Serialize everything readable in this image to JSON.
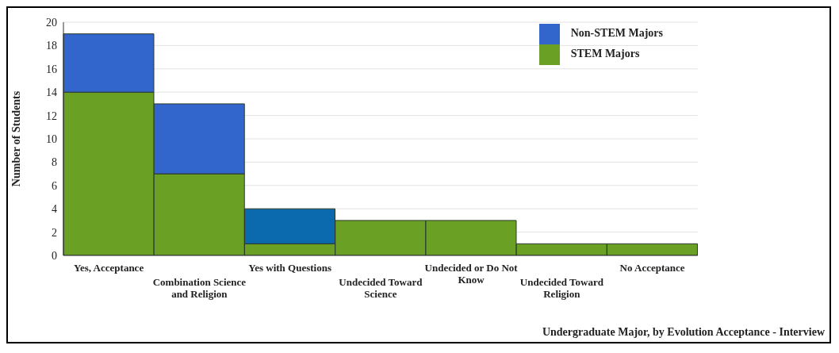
{
  "chart_data": {
    "type": "bar",
    "stacked": true,
    "xlabel": "Undergraduate Major, by Evolution Acceptance - Interview",
    "ylabel": "Number of Students",
    "categories": [
      "Yes, Acceptance",
      "Combination Science and Religion",
      "Yes with Questions",
      "Undecided Toward Science",
      "Undecided or Do Not Know",
      "Undecided Toward Religion",
      "No Acceptance"
    ],
    "series": [
      {
        "name": "STEM Majors",
        "color": "#6aa125",
        "values": [
          14,
          7,
          1,
          3,
          3,
          1,
          1
        ]
      },
      {
        "name": "Non-STEM Majors",
        "color": "#3366cc",
        "colors": [
          "#3366cc",
          "#3366cc",
          "#0b6aae",
          "#3366cc",
          "#3366cc",
          "#3366cc",
          "#3366cc"
        ],
        "values": [
          5,
          6,
          3,
          0,
          0,
          0,
          0
        ]
      }
    ],
    "ylim": [
      0,
      20
    ],
    "yticks": [
      0,
      2,
      4,
      6,
      8,
      10,
      12,
      14,
      16,
      18,
      20
    ],
    "grid": "y",
    "legend": "top right"
  }
}
